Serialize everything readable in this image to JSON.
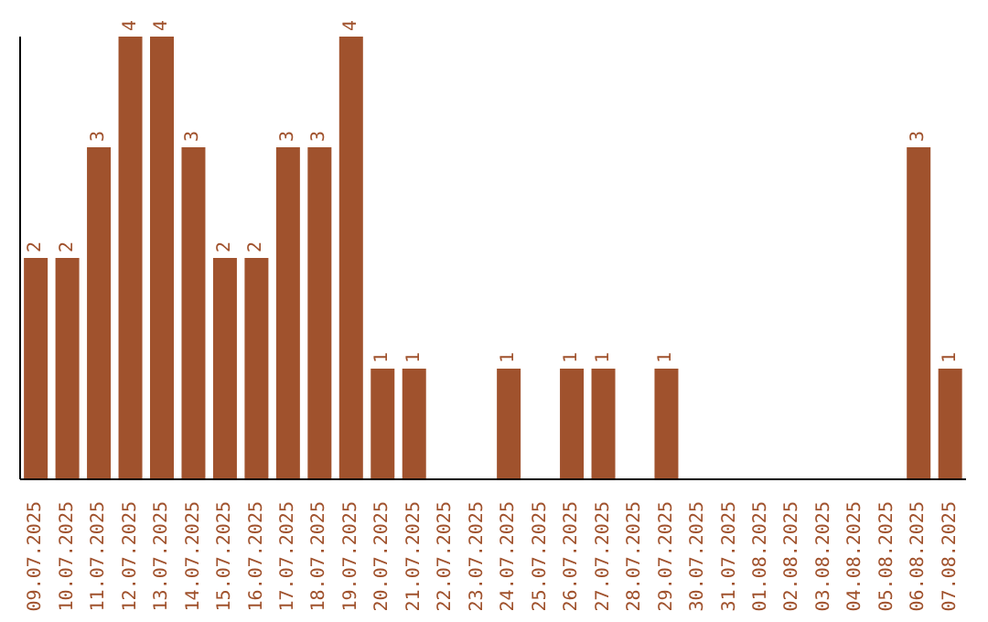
{
  "chart_data": {
    "type": "bar",
    "categories": [
      "09.07.2025",
      "10.07.2025",
      "11.07.2025",
      "12.07.2025",
      "13.07.2025",
      "14.07.2025",
      "15.07.2025",
      "16.07.2025",
      "17.07.2025",
      "18.07.2025",
      "19.07.2025",
      "20.07.2025",
      "21.07.2025",
      "22.07.2025",
      "23.07.2025",
      "24.07.2025",
      "25.07.2025",
      "26.07.2025",
      "27.07.2025",
      "28.07.2025",
      "29.07.2025",
      "30.07.2025",
      "31.07.2025",
      "01.08.2025",
      "02.08.2025",
      "03.08.2025",
      "04.08.2025",
      "05.08.2025",
      "06.08.2025",
      "07.08.2025"
    ],
    "values": [
      2,
      2,
      3,
      4,
      4,
      3,
      2,
      2,
      3,
      3,
      4,
      1,
      1,
      0,
      0,
      1,
      0,
      1,
      1,
      0,
      1,
      0,
      0,
      0,
      0,
      0,
      0,
      0,
      3,
      1
    ],
    "value_labels": [
      "2",
      "2",
      "3",
      "4",
      "4",
      "3",
      "2",
      "2",
      "3",
      "3",
      "4",
      "1",
      "1",
      null,
      null,
      "1",
      null,
      "1",
      "1",
      null,
      "1",
      null,
      null,
      null,
      null,
      null,
      null,
      null,
      "3",
      "1"
    ],
    "color": "#a0522d",
    "relative": false,
    "grid": false,
    "legend": false
  }
}
